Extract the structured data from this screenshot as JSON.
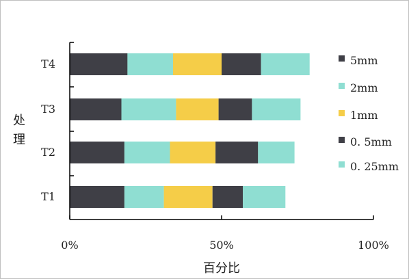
{
  "chart_data": {
    "type": "bar",
    "orientation": "horizontal",
    "stacked": true,
    "categories": [
      "T1",
      "T2",
      "T3",
      "T4"
    ],
    "series": [
      {
        "name": "5mm",
        "color": "#3f3f46",
        "values": [
          18,
          18,
          17,
          19
        ]
      },
      {
        "name": "2mm",
        "color": "#8fded2",
        "values": [
          13,
          15,
          18,
          15
        ]
      },
      {
        "name": "1mm",
        "color": "#f5cd48",
        "values": [
          16,
          15,
          14,
          16
        ]
      },
      {
        "name": "0.5mm",
        "color": "#3f3f46",
        "values": [
          10,
          14,
          11,
          13
        ]
      },
      {
        "name": "0.25mm",
        "color": "#8fded2",
        "values": [
          14,
          12,
          16,
          16
        ]
      }
    ],
    "xlim": [
      0,
      100
    ],
    "xticks": [
      "0%",
      "50%",
      "100%"
    ],
    "xlabel": "百分比",
    "ylabel": "处理",
    "legend": {
      "position": "right",
      "labels": [
        "5mm",
        "2mm",
        "1mm",
        "0. 5mm",
        "0. 25mm"
      ]
    },
    "grid": false
  }
}
